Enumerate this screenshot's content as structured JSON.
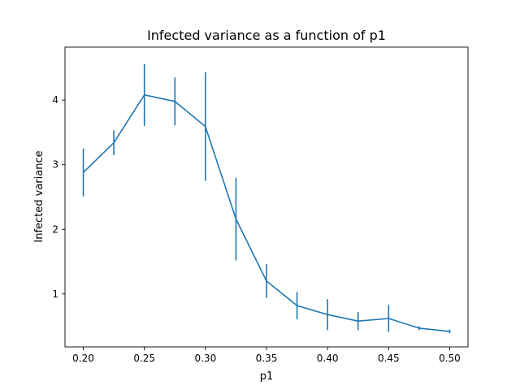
{
  "chart_data": {
    "type": "line",
    "title": "Infected variance as a function of p1",
    "xlabel": "p1",
    "ylabel": "Infected variance",
    "xlim": [
      0.185,
      0.515
    ],
    "ylim": [
      0.18,
      4.82
    ],
    "xticks": [
      0.2,
      0.25,
      0.3,
      0.35,
      0.4,
      0.45,
      0.5
    ],
    "xtick_labels": [
      "0.20",
      "0.25",
      "0.30",
      "0.35",
      "0.40",
      "0.45",
      "0.50"
    ],
    "yticks": [
      1,
      2,
      3,
      4
    ],
    "ytick_labels": [
      "1",
      "2",
      "3",
      "4"
    ],
    "grid": false,
    "color": "#1f77b4",
    "series": [
      {
        "x": [
          0.2,
          0.225,
          0.25,
          0.275,
          0.3,
          0.325,
          0.35,
          0.375,
          0.4,
          0.425,
          0.45,
          0.475,
          0.5
        ],
        "y": [
          2.88,
          3.34,
          4.08,
          3.98,
          3.59,
          2.16,
          1.2,
          0.82,
          0.68,
          0.58,
          0.62,
          0.47,
          0.42
        ],
        "error": [
          0.37,
          0.19,
          0.48,
          0.37,
          0.84,
          0.64,
          0.26,
          0.21,
          0.24,
          0.14,
          0.21,
          0.03,
          0.03
        ]
      }
    ]
  }
}
